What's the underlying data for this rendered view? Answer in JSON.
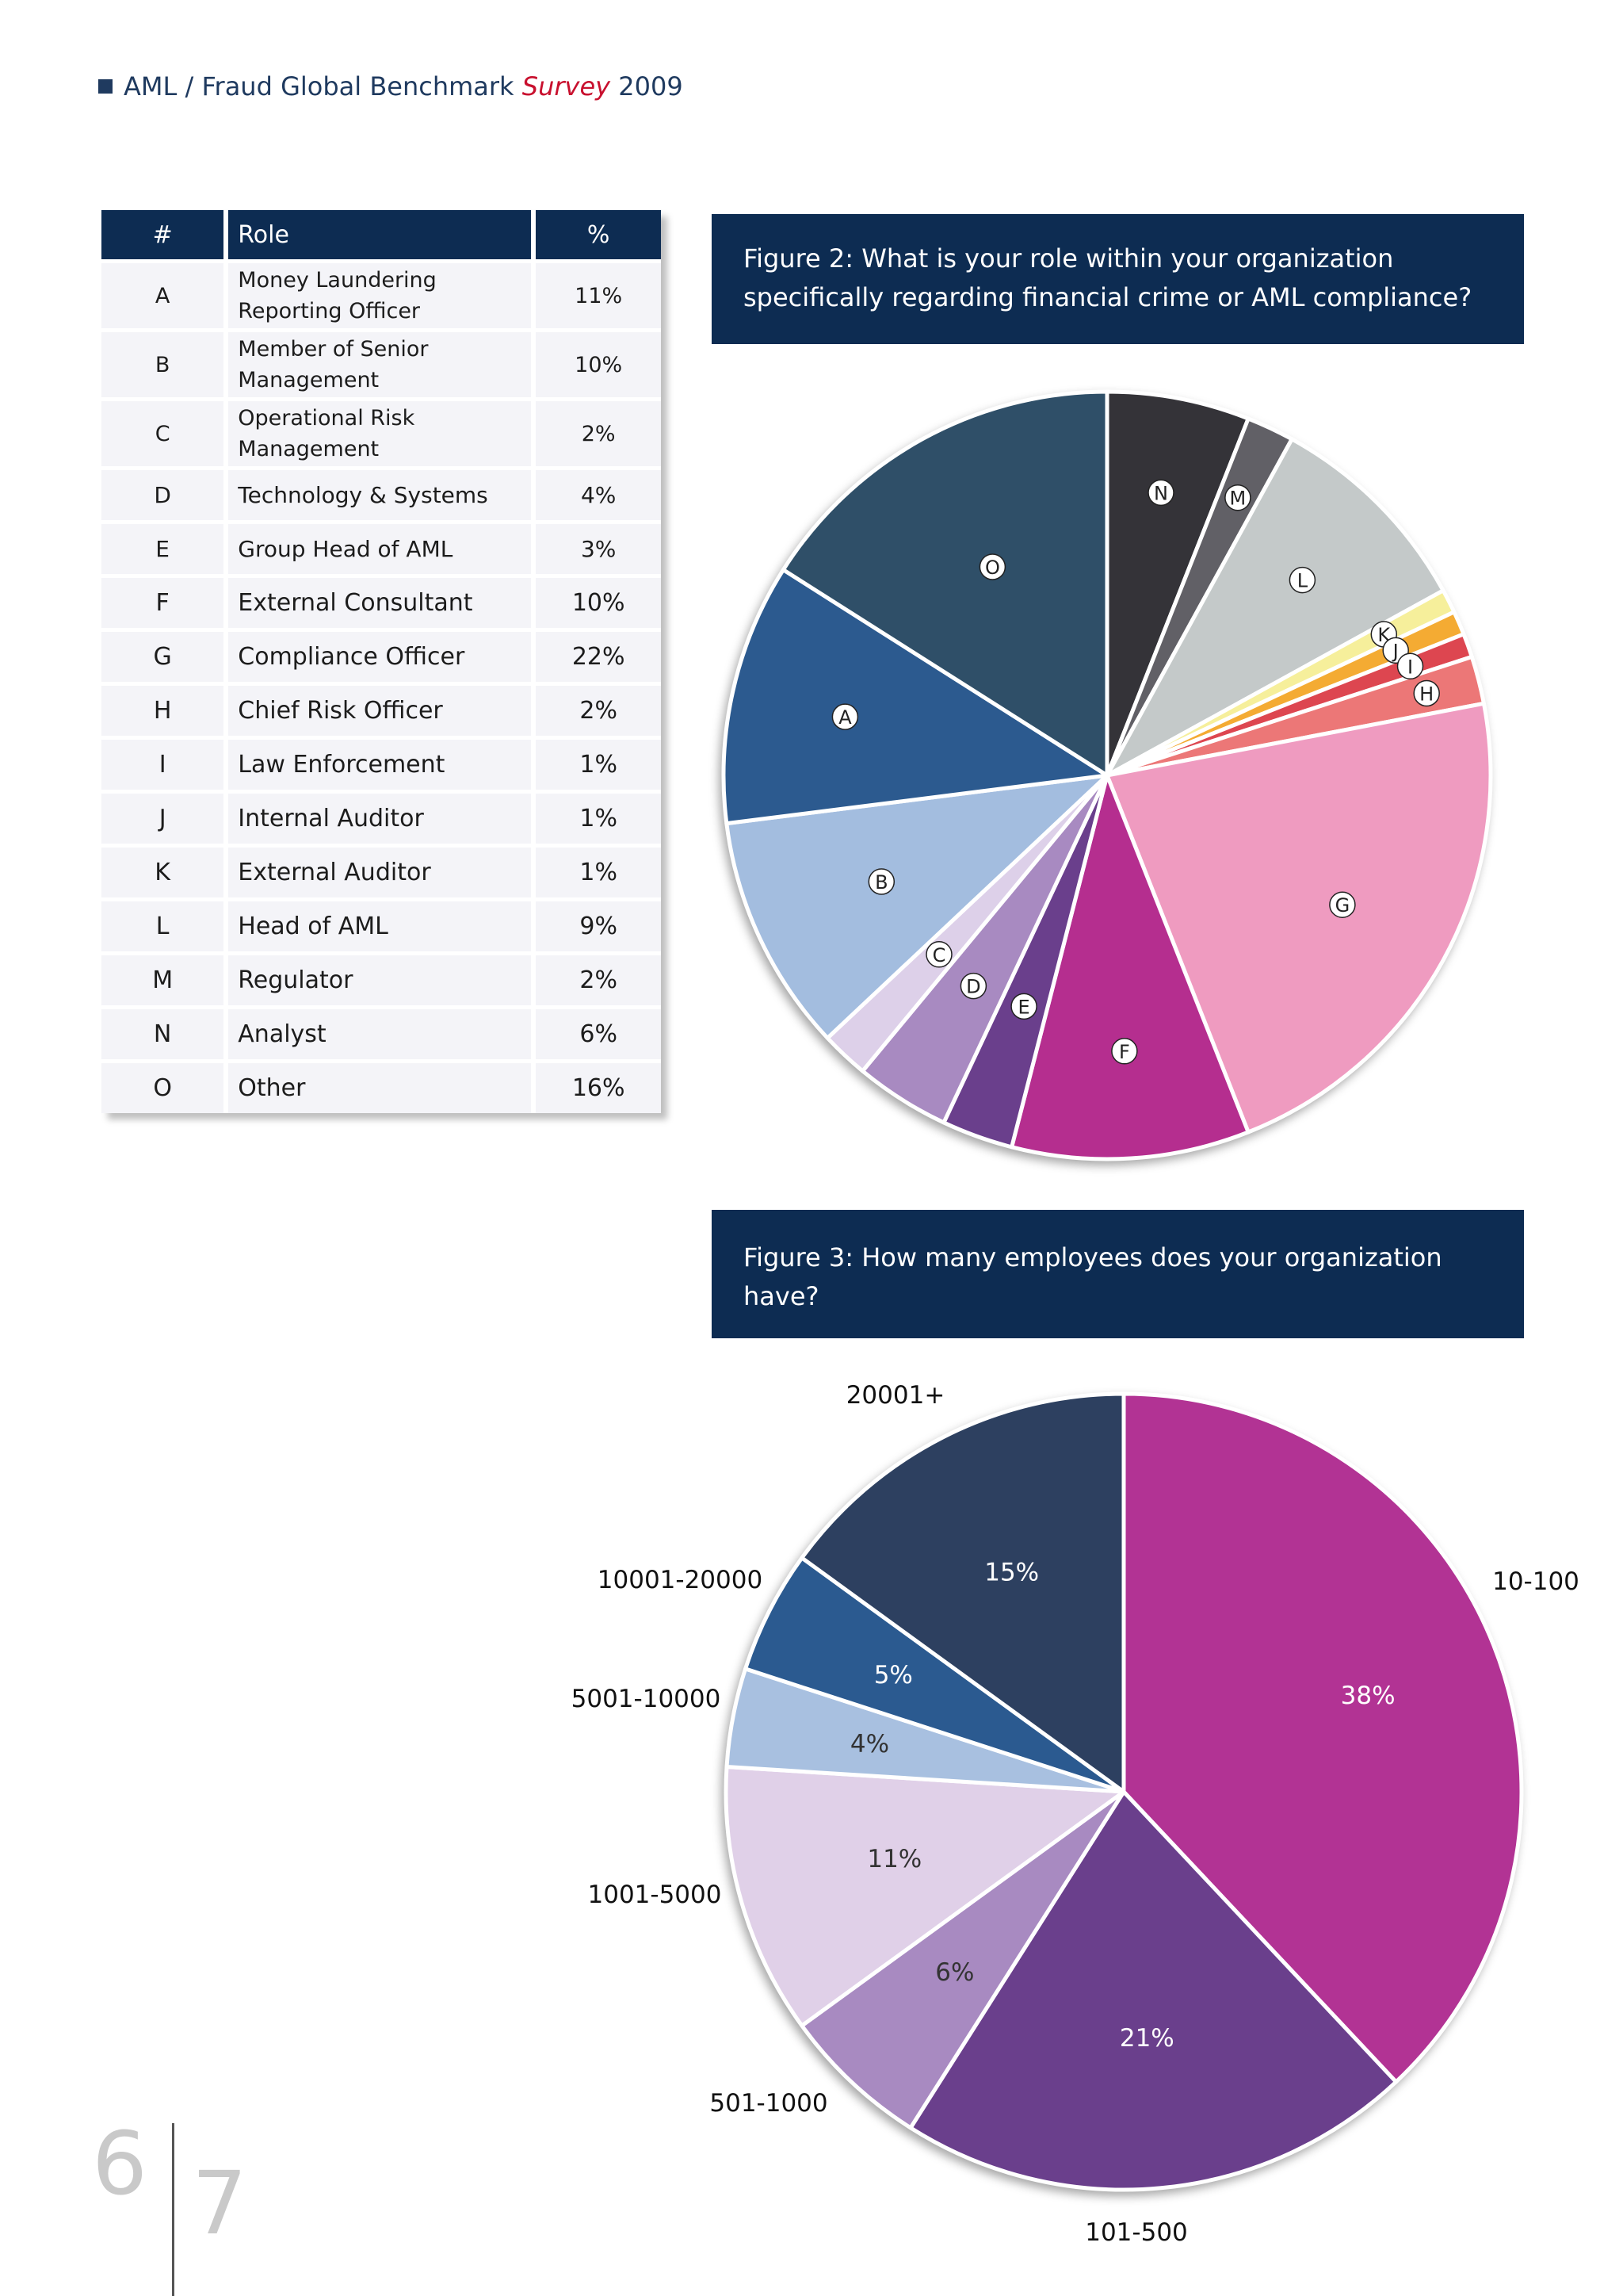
{
  "header": {
    "prefix": "AML / Fraud Global Benchmark ",
    "survey": "Survey",
    "year": " 2009"
  },
  "table": {
    "headers": [
      "#",
      "Role",
      "%"
    ],
    "rows": [
      {
        "id": "A",
        "role": "Money Laundering Reporting Officer",
        "pct": "11%"
      },
      {
        "id": "B",
        "role": "Member of Senior Management",
        "pct": "10%"
      },
      {
        "id": "C",
        "role": "Operational Risk Management",
        "pct": "2%"
      },
      {
        "id": "D",
        "role": "Technology & Systems",
        "pct": "4%"
      },
      {
        "id": "E",
        "role": "Group Head of AML",
        "pct": "3%"
      },
      {
        "id": "F",
        "role": "External Consultant",
        "pct": "10%"
      },
      {
        "id": "G",
        "role": "Compliance Officer",
        "pct": "22%"
      },
      {
        "id": "H",
        "role": "Chief Risk Officer",
        "pct": "2%"
      },
      {
        "id": "I",
        "role": "Law Enforcement",
        "pct": "1%"
      },
      {
        "id": "J",
        "role": "Internal Auditor",
        "pct": "1%"
      },
      {
        "id": "K",
        "role": "External Auditor",
        "pct": "1%"
      },
      {
        "id": "L",
        "role": "Head of AML",
        "pct": "9%"
      },
      {
        "id": "M",
        "role": "Regulator",
        "pct": "2%"
      },
      {
        "id": "N",
        "role": "Analyst",
        "pct": "6%"
      },
      {
        "id": "O",
        "role": "Other",
        "pct": "16%"
      }
    ]
  },
  "figure2": {
    "title": "Figure 2: What is your role within your organization specifically regarding financial crime or AML compliance?"
  },
  "figure3": {
    "title": "Figure 3: How many employees does your organization have?"
  },
  "chart_data": [
    {
      "type": "pie",
      "title": "Figure 2: What is your role within your organization specifically regarding financial crime or AML compliance?",
      "categories": [
        "N",
        "M",
        "L",
        "K",
        "J",
        "I",
        "H",
        "G",
        "F",
        "E",
        "D",
        "C",
        "B",
        "A",
        "O"
      ],
      "values": [
        6,
        2,
        9,
        1,
        1,
        1,
        2,
        22,
        10,
        3,
        4,
        2,
        10,
        11,
        16
      ],
      "colors": [
        "#343338",
        "#616066",
        "#c4c9c9",
        "#f6ef9b",
        "#f4ab33",
        "#dd4650",
        "#ec7777",
        "#ef9bc0",
        "#b52e8f",
        "#6a3f8c",
        "#a88ac1",
        "#ddd0e9",
        "#a3bddf",
        "#2c5a8f",
        "#2f4f68"
      ]
    },
    {
      "type": "pie",
      "title": "Figure 3: How many employees does your organization have?",
      "categories": [
        "10-100",
        "101-500",
        "501-1000",
        "1001-5000",
        "5001-10000",
        "10001-20000",
        "20001+"
      ],
      "values": [
        38,
        21,
        6,
        11,
        4,
        5,
        15
      ],
      "value_labels": [
        "38%",
        "21%",
        "6%",
        "11%",
        "4%",
        "5%",
        "15%"
      ],
      "colors": [
        "#b23394",
        "#6a3f8c",
        "#a88ac1",
        "#e0d0e8",
        "#a8c0e0",
        "#2b5a90",
        "#2d4060"
      ]
    }
  ],
  "page": {
    "left": "6",
    "right": "7"
  }
}
